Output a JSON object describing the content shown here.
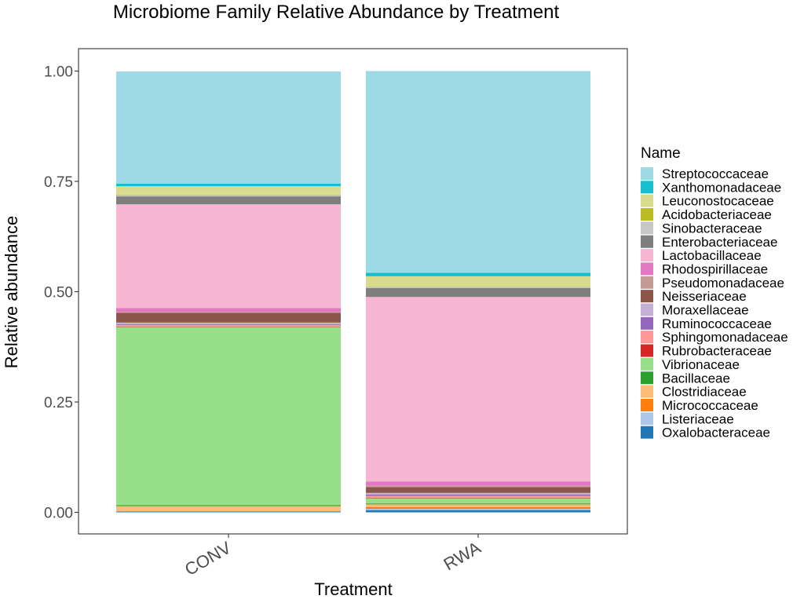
{
  "chart_data": {
    "type": "bar",
    "stacked": true,
    "title": "Microbiome Family Relative Abundance by Treatment",
    "xlabel": "Treatment",
    "ylabel": "Relative abundance",
    "ylim": [
      0,
      1
    ],
    "yticks": [
      "0.00",
      "0.25",
      "0.50",
      "0.75",
      "1.00"
    ],
    "ytick_values": [
      0,
      0.25,
      0.5,
      0.75,
      1.0
    ],
    "grid": false,
    "legend": {
      "title": "Name",
      "position": "right"
    },
    "categories": [
      "CONV",
      "RWA"
    ],
    "series": [
      {
        "name": "Oxalobacteraceae",
        "color": "#1f77b4",
        "values": [
          0.002,
          0.005
        ]
      },
      {
        "name": "Listeriaceae",
        "color": "#aec7e8",
        "values": [
          0.0,
          0.003
        ]
      },
      {
        "name": "Micrococcaceae",
        "color": "#ff7f0e",
        "values": [
          0.0,
          0.004
        ]
      },
      {
        "name": "Clostridiaceae",
        "color": "#ffbb78",
        "values": [
          0.012,
          0.006
        ]
      },
      {
        "name": "Bacillaceae",
        "color": "#2ca02c",
        "values": [
          0.002,
          0.002
        ]
      },
      {
        "name": "Vibrionaceae",
        "color": "#98df8a",
        "values": [
          0.404,
          0.012
        ]
      },
      {
        "name": "Rubrobacteraceae",
        "color": "#d62728",
        "values": [
          0.001,
          0.001
        ]
      },
      {
        "name": "Sphingomonadaceae",
        "color": "#ff9896",
        "values": [
          0.003,
          0.004
        ]
      },
      {
        "name": "Ruminococcaceae",
        "color": "#9467bd",
        "values": [
          0.002,
          0.003
        ]
      },
      {
        "name": "Moraxellaceae",
        "color": "#c5b0d5",
        "values": [
          0.004,
          0.004
        ]
      },
      {
        "name": "Neisseriaceae",
        "color": "#8c564b",
        "values": [
          0.022,
          0.013
        ]
      },
      {
        "name": "Pseudomonadaceae",
        "color": "#c49c94",
        "values": [
          0.002,
          0.003
        ]
      },
      {
        "name": "Rhodospirillaceae",
        "color": "#e377c2",
        "values": [
          0.009,
          0.01
        ]
      },
      {
        "name": "Lactobacillaceae",
        "color": "#f7b6d2",
        "values": [
          0.235,
          0.418
        ]
      },
      {
        "name": "Enterobacteriaceae",
        "color": "#7f7f7f",
        "values": [
          0.018,
          0.02
        ]
      },
      {
        "name": "Sinobacteraceae",
        "color": "#c7c7c7",
        "values": [
          0.003,
          0.003
        ]
      },
      {
        "name": "Acidobacteriaceae",
        "color": "#bcbd22",
        "values": [
          0.001,
          0.001
        ]
      },
      {
        "name": "Leuconostocaceae",
        "color": "#dbdb8d",
        "values": [
          0.019,
          0.023
        ]
      },
      {
        "name": "Xanthomonadaceae",
        "color": "#17becf",
        "values": [
          0.006,
          0.008
        ]
      },
      {
        "name": "Streptococcaceae",
        "color": "#9edae5",
        "values": [
          0.254,
          0.457
        ]
      }
    ]
  }
}
